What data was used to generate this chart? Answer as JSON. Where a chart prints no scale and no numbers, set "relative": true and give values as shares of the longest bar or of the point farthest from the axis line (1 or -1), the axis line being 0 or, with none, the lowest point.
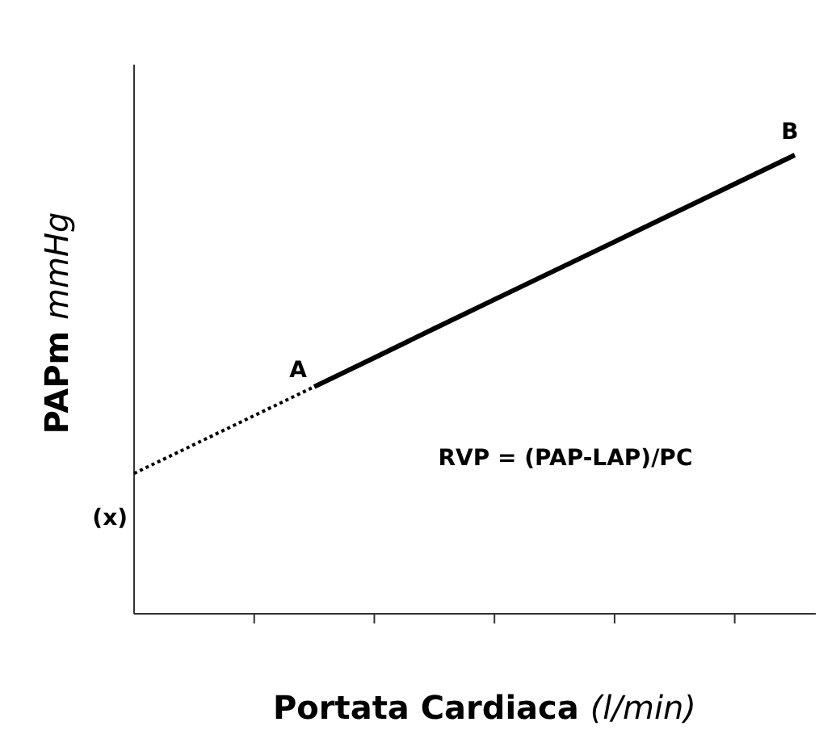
{
  "chart_data": {
    "type": "line",
    "relative": true,
    "xlabel": "Portata Cardiaca (l/min)",
    "ylabel": "PAPm mmHg",
    "categories": [
      null,
      null,
      null,
      null,
      null,
      null,
      null,
      null,
      null,
      null,
      null,
      null
    ],
    "series": [
      {
        "color": "#000000",
        "line_style": "dotted",
        "values": [
          0.306,
          0.369,
          0.432,
          0.495,
          null,
          null,
          null,
          null,
          null,
          null,
          null,
          null
        ]
      },
      {
        "color": "#000000",
        "line_style": "solid",
        "values": [
          null,
          null,
          null,
          0.495,
          0.558,
          0.622,
          0.685,
          0.748,
          0.811,
          0.874,
          0.937,
          1
        ]
      }
    ],
    "annotations": [
      "A",
      "B",
      "(x)",
      "RVP = (PAP-LAP)/PC"
    ],
    "marker": "none"
  }
}
